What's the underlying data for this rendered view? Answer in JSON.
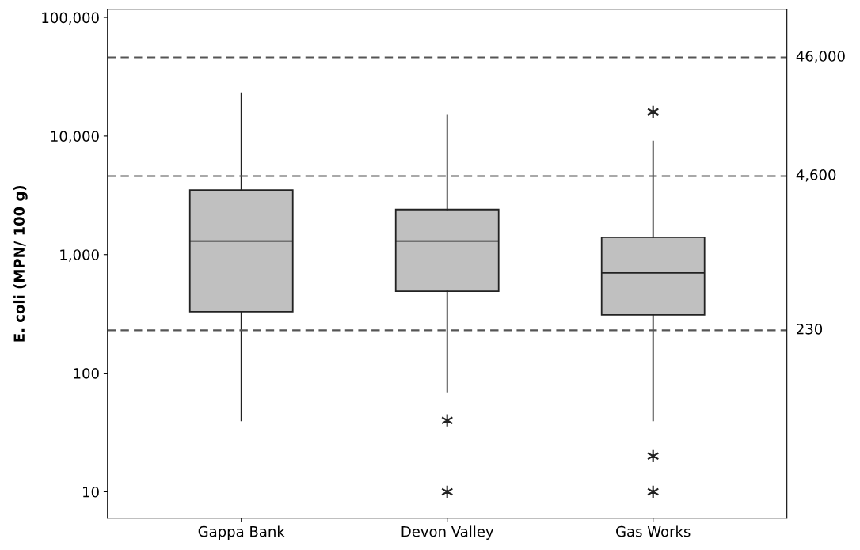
{
  "chart_data": {
    "type": "box",
    "ylabel": "E. coli (MPN/ 100 g)",
    "categories": [
      "Gappa Bank",
      "Devon Valley",
      "Gas Works"
    ],
    "boxes": [
      {
        "low": 40,
        "q1": 330,
        "median": 1300,
        "q3": 3500,
        "high": 23000
      },
      {
        "low": 70,
        "q1": 490,
        "median": 1300,
        "q3": 2400,
        "high": 15000,
        "outliers": [
          40,
          10
        ]
      },
      {
        "low": 40,
        "q1": 310,
        "median": 700,
        "q3": 1400,
        "high": 9000,
        "outliers": [
          16000,
          20,
          10
        ]
      }
    ],
    "color": "#c0c0c0",
    "marker": "star",
    "log": "y",
    "ylim": [
      6,
      117000
    ],
    "yticks": [
      {
        "value": 10,
        "label": "10"
      },
      {
        "value": 100,
        "label": "100"
      },
      {
        "value": 1000,
        "label": "1,000"
      },
      {
        "value": 10000,
        "label": "10,000"
      },
      {
        "value": 100000,
        "label": "100,000"
      }
    ],
    "ref_lines": [
      {
        "axis": "y",
        "value": 46000,
        "label": "46,000",
        "color": "#555555",
        "line_style": "dashed"
      },
      {
        "axis": "y",
        "value": 4600,
        "label": "4,600",
        "color": "#555555",
        "line_style": "dashed"
      },
      {
        "axis": "y",
        "value": 230,
        "label": "230",
        "color": "#555555",
        "line_style": "dashed"
      }
    ],
    "grid": false
  }
}
